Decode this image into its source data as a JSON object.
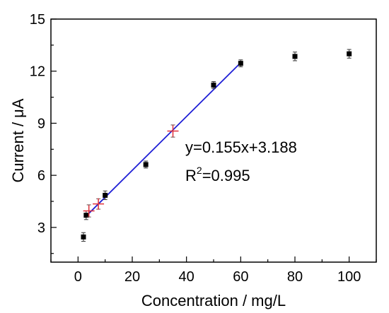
{
  "chart_data": {
    "type": "scatter",
    "xlabel": "Concentration / mg/L",
    "ylabel": "Current / μA",
    "xlim": [
      -10,
      110
    ],
    "ylim": [
      1,
      15
    ],
    "x_ticks": [
      0,
      20,
      40,
      60,
      80,
      100
    ],
    "y_ticks": [
      3,
      6,
      9,
      12,
      15
    ],
    "series": [
      {
        "marker": "square",
        "color": "#000000",
        "points": [
          {
            "x": 2,
            "y": 2.45,
            "err": 0.25
          },
          {
            "x": 3,
            "y": 3.7,
            "err": 0.25
          },
          {
            "x": 10,
            "y": 4.85,
            "err": 0.25
          },
          {
            "x": 25,
            "y": 6.62,
            "err": 0.2
          },
          {
            "x": 50,
            "y": 11.2,
            "err": 0.2
          },
          {
            "x": 60,
            "y": 12.45,
            "err": 0.2
          },
          {
            "x": 80,
            "y": 12.85,
            "err": 0.25
          },
          {
            "x": 100,
            "y": 13.0,
            "err": 0.25
          }
        ]
      },
      {
        "marker": "cross",
        "color": "#e0303a",
        "points": [
          {
            "x": 4,
            "y": 3.95,
            "err": 0.35
          },
          {
            "x": 7.5,
            "y": 4.35,
            "err": 0.3
          },
          {
            "x": 35,
            "y": 8.55,
            "err": 0.35
          }
        ]
      }
    ],
    "fit_line": {
      "color": "#1f1fd6",
      "slope": 0.155,
      "intercept": 3.188,
      "x_range": [
        3,
        60
      ]
    },
    "annotations": {
      "equation": "y=0.155x+3.188",
      "r_base": "R",
      "r_sup": "2",
      "r_value": "=0.995"
    }
  }
}
